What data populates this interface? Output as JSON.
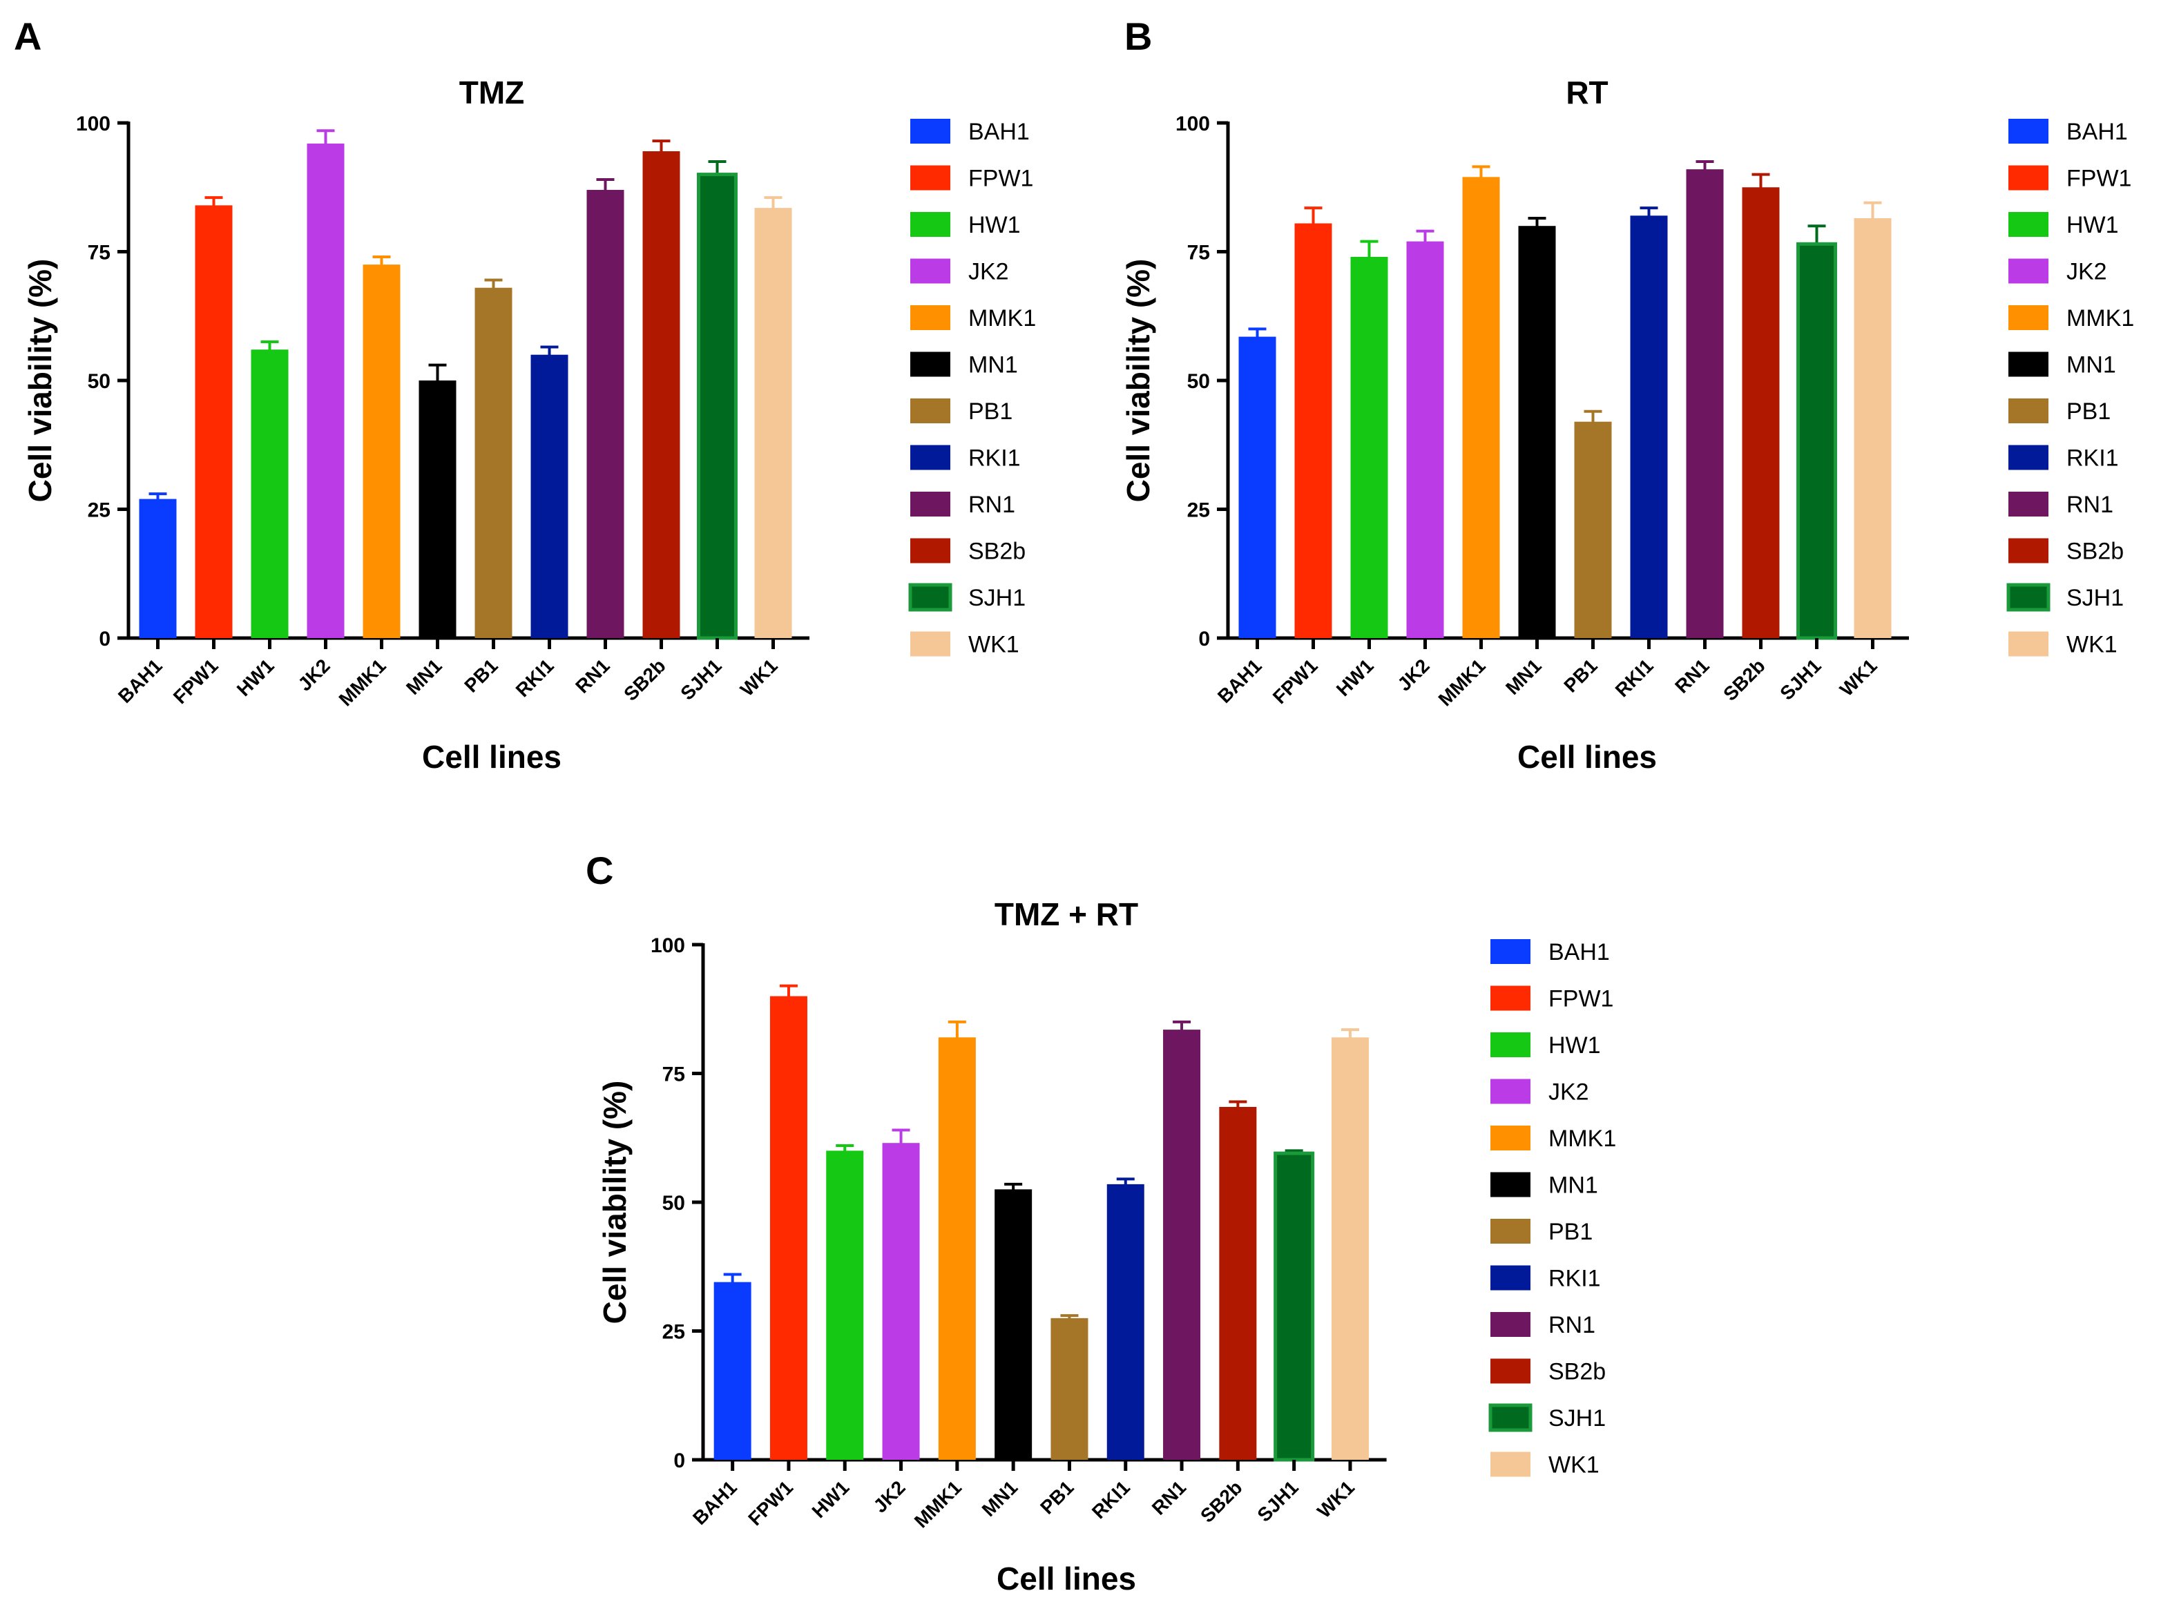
{
  "chart_data": [
    {
      "type": "bar",
      "panel": "A",
      "title": "TMZ",
      "xlabel": "Cell lines",
      "ylabel": "Cell viability (%)",
      "ylim": [
        0,
        100
      ],
      "yticks": [
        0,
        25,
        50,
        75,
        100
      ],
      "categories": [
        "BAH1",
        "FPW1",
        "HW1",
        "JK2",
        "MMK1",
        "MN1",
        "PB1",
        "RKI1",
        "RN1",
        "SB2b",
        "SJH1",
        "WK1"
      ],
      "values": [
        27,
        84,
        56,
        96,
        72.5,
        50,
        68,
        55,
        87,
        94.5,
        90,
        83.5
      ],
      "errors": [
        1,
        1.5,
        1.5,
        2.5,
        1.5,
        3,
        1.5,
        1.5,
        2,
        2,
        2.5,
        2
      ],
      "legend_position": "right"
    },
    {
      "type": "bar",
      "panel": "B",
      "title": "RT",
      "xlabel": "Cell lines",
      "ylabel": "Cell viability (%)",
      "ylim": [
        0,
        100
      ],
      "yticks": [
        0,
        25,
        50,
        75,
        100
      ],
      "categories": [
        "BAH1",
        "FPW1",
        "HW1",
        "JK2",
        "MMK1",
        "MN1",
        "PB1",
        "RKI1",
        "RN1",
        "SB2b",
        "SJH1",
        "WK1"
      ],
      "values": [
        58.5,
        80.5,
        74,
        77,
        89.5,
        80,
        42,
        82,
        91,
        87.5,
        76.5,
        81.5
      ],
      "errors": [
        1.5,
        3,
        3,
        2,
        2,
        1.5,
        2,
        1.5,
        1.5,
        2.5,
        3.5,
        3
      ],
      "legend_position": "right"
    },
    {
      "type": "bar",
      "panel": "C",
      "title": "TMZ + RT",
      "xlabel": "Cell lines",
      "ylabel": "Cell viability (%)",
      "ylim": [
        0,
        100
      ],
      "yticks": [
        0,
        25,
        50,
        75,
        100
      ],
      "categories": [
        "BAH1",
        "FPW1",
        "HW1",
        "JK2",
        "MMK1",
        "MN1",
        "PB1",
        "RKI1",
        "RN1",
        "SB2b",
        "SJH1",
        "WK1"
      ],
      "values": [
        34.5,
        90,
        60,
        61.5,
        82,
        52.5,
        27.5,
        53.5,
        83.5,
        68.5,
        59.5,
        82
      ],
      "errors": [
        1.5,
        2,
        1,
        2.5,
        3,
        1,
        0.5,
        1,
        1.5,
        1,
        0.5,
        1.5
      ],
      "legend_position": "right"
    }
  ],
  "legend_items": [
    "BAH1",
    "FPW1",
    "HW1",
    "JK2",
    "MMK1",
    "MN1",
    "PB1",
    "RKI1",
    "RN1",
    "SB2b",
    "SJH1",
    "WK1"
  ],
  "colors": [
    "#0a3cff",
    "#ff2a00",
    "#14c814",
    "#bb3ce6",
    "#ff9000",
    "#000000",
    "#a67628",
    "#001a9a",
    "#6e1760",
    "#b01800",
    "#006b1e",
    "#f6c796"
  ],
  "sjh1_border_color": "#1a9a3a"
}
